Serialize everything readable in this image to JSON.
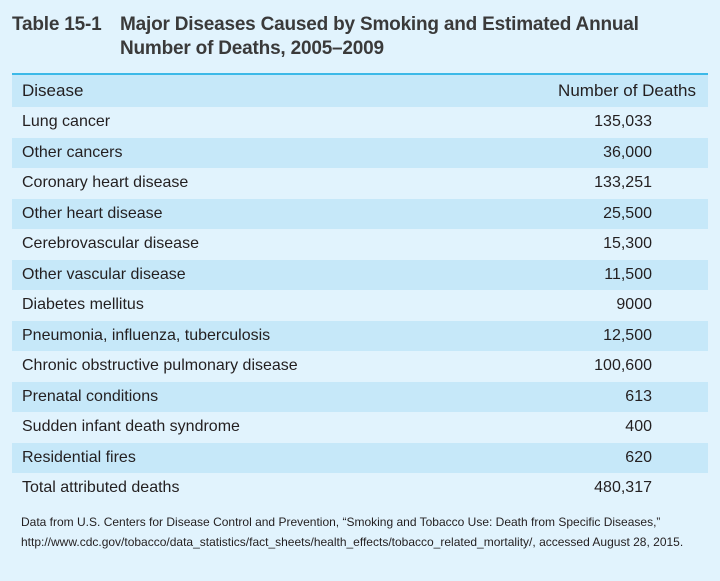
{
  "title": {
    "label": "Table 15-1",
    "text": "Major Diseases Caused by Smoking and Estimated Annual Number of Deaths, 2005–2009"
  },
  "table": {
    "columns": [
      "Disease",
      "Number of Deaths"
    ],
    "rows": [
      {
        "disease": "Lung cancer",
        "deaths": "135,033"
      },
      {
        "disease": "Other cancers",
        "deaths": "36,000"
      },
      {
        "disease": "Coronary heart disease",
        "deaths": "133,251"
      },
      {
        "disease": "Other heart disease",
        "deaths": "25,500"
      },
      {
        "disease": "Cerebrovascular disease",
        "deaths": "15,300"
      },
      {
        "disease": "Other vascular disease",
        "deaths": "11,500"
      },
      {
        "disease": "Diabetes mellitus",
        "deaths": "9000"
      },
      {
        "disease": "Pneumonia, influenza, tuberculosis",
        "deaths": "12,500"
      },
      {
        "disease": "Chronic obstructive pulmonary disease",
        "deaths": "100,600"
      },
      {
        "disease": "Prenatal conditions",
        "deaths": "613"
      },
      {
        "disease": "Sudden infant death syndrome",
        "deaths": "400"
      },
      {
        "disease": "Residential fires",
        "deaths": "620"
      },
      {
        "disease": "Total attributed deaths",
        "deaths": "480,317"
      }
    ]
  },
  "note": "Data from U.S. Centers for Disease Control and Prevention, “Smoking and Tobacco Use: Death from Specific Diseases,” http://www.cdc.gov/tobacco/data_statistics/fact_sheets/health_effects/tobacco_related_mortality/, accessed August 28, 2015.",
  "colors": {
    "background": "#e1f3fd",
    "shaded_row": "#c6e8f9",
    "rule": "#3cb9e8"
  }
}
